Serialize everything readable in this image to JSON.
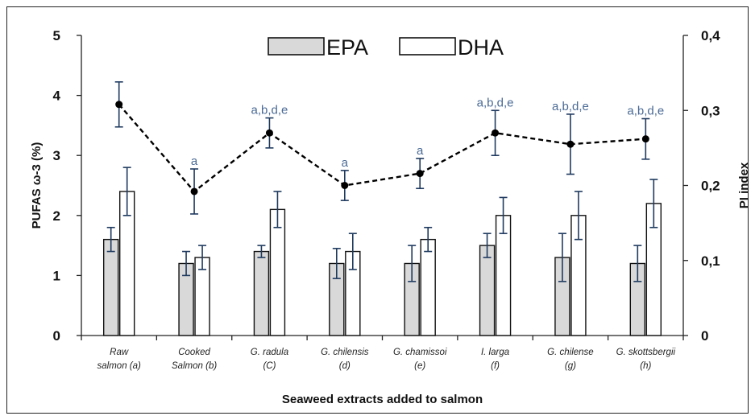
{
  "chart_data": {
    "type": "bar",
    "xlabel": "Seaweed extracts added to salmon",
    "ylabel": "PUFAS ω-3 (%)",
    "y2label": "PI index",
    "ylim": [
      0,
      5
    ],
    "y2lim": [
      0,
      0.4
    ],
    "yticks": [
      "0",
      "1",
      "2",
      "3",
      "4",
      "5"
    ],
    "y2ticks": [
      "0",
      "0,1",
      "0,2",
      "0,3",
      "0,4"
    ],
    "legend_position": "top",
    "categories": [
      [
        "Raw",
        "salmon (a)"
      ],
      [
        "Cooked",
        "Salmon (b)"
      ],
      [
        "G. radula",
        "(C)"
      ],
      [
        "G. chilensis",
        "(d)"
      ],
      [
        "G. chamissoi",
        "(e)"
      ],
      [
        "I. larga",
        "(f)"
      ],
      [
        "G. chilense",
        "(g)"
      ],
      [
        "G. skottsbergii",
        "(h)"
      ]
    ],
    "series": [
      {
        "name": "EPA",
        "type": "bar",
        "color": "#d9d9d9",
        "values": [
          1.6,
          1.2,
          1.4,
          1.2,
          1.2,
          1.5,
          1.3,
          1.2
        ],
        "error": [
          0.2,
          0.2,
          0.1,
          0.25,
          0.3,
          0.2,
          0.4,
          0.3
        ]
      },
      {
        "name": "DHA",
        "type": "bar",
        "color": "#ffffff",
        "values": [
          2.4,
          1.3,
          2.1,
          1.4,
          1.6,
          2.0,
          2.0,
          2.2
        ],
        "error": [
          0.4,
          0.2,
          0.3,
          0.3,
          0.2,
          0.3,
          0.4,
          0.4
        ]
      },
      {
        "type": "line",
        "axis": "right",
        "style": "dashed",
        "marker": "circle",
        "color": "#000000",
        "values": [
          0.308,
          0.192,
          0.27,
          0.2,
          0.216,
          0.27,
          0.255,
          0.262
        ],
        "error": [
          0.03,
          0.03,
          0.02,
          0.02,
          0.02,
          0.03,
          0.04,
          0.027
        ],
        "annotations": [
          "",
          "a",
          "a,b,d,e",
          "a",
          "a",
          "a,b,d,e",
          "a,b,d,e",
          "a,b,d,e"
        ]
      }
    ]
  }
}
